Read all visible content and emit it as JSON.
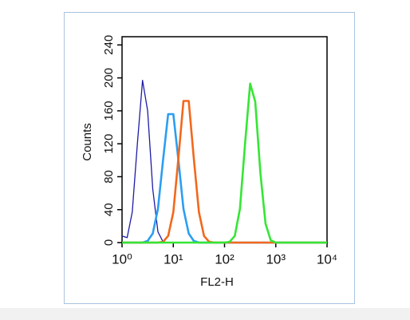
{
  "chart_data": {
    "type": "line",
    "x_label": "FL2-H",
    "y_label": "Counts",
    "xscale": "log",
    "x": [
      1,
      1.26,
      1.58,
      2,
      2.51,
      3.16,
      3.98,
      5.01,
      6.31,
      7.94,
      10,
      12.6,
      15.8,
      20,
      25.1,
      31.6,
      39.8,
      50.1,
      63.1,
      79.4,
      100,
      126,
      158,
      200,
      251,
      316,
      398,
      501,
      631,
      794,
      1000,
      1259,
      1585,
      1995,
      2512,
      3162,
      3981,
      5012,
      6310,
      7943,
      10000
    ],
    "series": [
      {
        "color": "#1c1ca8",
        "values": [
          8,
          6,
          37,
          121,
          197,
          160,
          65,
          13,
          1,
          0,
          0,
          0,
          0,
          0,
          0,
          0,
          0,
          0,
          0,
          0,
          0,
          0,
          0,
          0,
          0,
          0,
          0,
          0,
          0,
          0,
          0,
          0,
          0,
          0,
          0,
          0,
          0,
          0,
          0,
          0,
          0
        ]
      },
      {
        "color": "#2b9ef2",
        "values": [
          0,
          0,
          0,
          0,
          0,
          2,
          11,
          41,
          100,
          156,
          156,
          100,
          41,
          11,
          2,
          0,
          0,
          0,
          0,
          0,
          0,
          0,
          0,
          0,
          0,
          0,
          0,
          0,
          0,
          0,
          0,
          0,
          0,
          0,
          0,
          0,
          0,
          0,
          0,
          0,
          0
        ]
      },
      {
        "color": "#f2681c",
        "values": [
          0,
          0,
          0,
          0,
          0,
          0,
          0,
          0,
          1,
          8,
          37,
          103,
          172,
          172,
          103,
          37,
          8,
          1,
          0,
          0,
          0,
          0,
          0,
          0,
          0,
          0,
          0,
          0,
          0,
          0,
          0,
          0,
          0,
          0,
          0,
          0,
          0,
          0,
          0,
          0,
          0
        ]
      },
      {
        "color": "#35e635",
        "values": [
          0,
          0,
          0,
          0,
          0,
          0,
          0,
          0,
          0,
          0,
          0,
          0,
          0,
          0,
          0,
          0,
          0,
          0,
          0,
          0,
          0,
          1,
          8,
          41,
          120,
          193,
          171,
          84,
          23,
          3,
          0,
          0,
          0,
          0,
          0,
          0,
          0,
          0,
          0,
          0,
          0
        ]
      }
    ],
    "xlim": [
      1,
      10000
    ],
    "xticks": [
      {
        "value": 1,
        "label": "10⁰"
      },
      {
        "value": 10,
        "label": "10¹"
      },
      {
        "value": 100,
        "label": "10²"
      },
      {
        "value": 1000,
        "label": "10³"
      },
      {
        "value": 10000,
        "label": "10⁴"
      }
    ],
    "ylim": [
      0,
      250
    ],
    "yticks": [
      0,
      40,
      80,
      120,
      160,
      200,
      240
    ]
  }
}
